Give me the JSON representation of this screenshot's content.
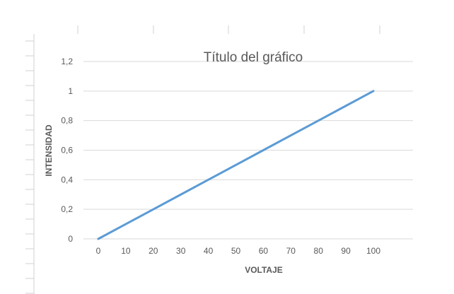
{
  "chart_data": {
    "type": "line",
    "title": "Título del gráfico",
    "xlabel": "VOLTAJE",
    "ylabel": "INTENSIDAD",
    "x": [
      0,
      10,
      20,
      30,
      40,
      50,
      60,
      70,
      80,
      90,
      100
    ],
    "x_tick_labels": [
      "0",
      "10",
      "20",
      "30",
      "40",
      "50",
      "60",
      "70",
      "80",
      "90",
      "100"
    ],
    "y_tick_labels": [
      "0",
      "0,2",
      "0,4",
      "0,6",
      "0,8",
      "1",
      "1,2"
    ],
    "y_ticks": [
      0,
      0.2,
      0.4,
      0.6,
      0.8,
      1,
      1.2
    ],
    "ylim": [
      0,
      1.2
    ],
    "grid": true,
    "legend": "none",
    "series": [
      {
        "values": [
          0,
          0.1,
          0.2,
          0.3,
          0.4,
          0.5,
          0.6,
          0.7,
          0.8,
          0.9,
          1.0
        ],
        "color": "#5b9bd5"
      }
    ]
  }
}
